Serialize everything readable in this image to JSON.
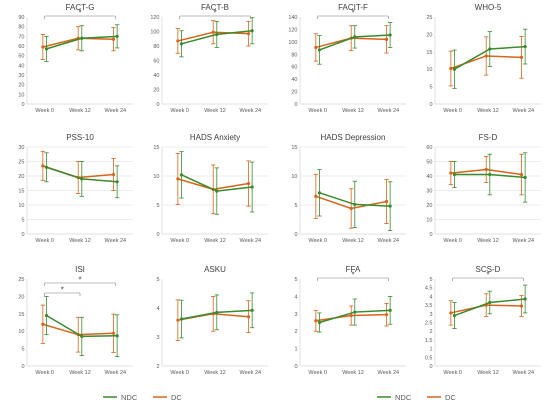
{
  "colors": {
    "ndc": "#3a8a2e",
    "dc": "#d9641a",
    "axis": "#d9d9d9",
    "grid": "#d9d9d9",
    "bracket": "#7f7f7f",
    "text": "#595959"
  },
  "legend": [
    {
      "label": "NDC",
      "color": "#3a8a2e"
    },
    {
      "label": "DC",
      "color": "#d9641a"
    }
  ],
  "chart_data": [
    {
      "type": "line",
      "title": "FACT-G",
      "categories": [
        "Week 0",
        "Week 12",
        "Week 24"
      ],
      "ylim": [
        0,
        90
      ],
      "yticks": [
        0,
        10,
        20,
        30,
        40,
        50,
        60,
        70,
        80,
        90
      ],
      "grid": false,
      "series": [
        {
          "name": "NDC",
          "values": [
            57,
            68,
            70
          ],
          "error": [
            13,
            13,
            12
          ]
        },
        {
          "name": "DC",
          "values": [
            59,
            68,
            67
          ],
          "error": [
            13,
            12,
            12
          ]
        }
      ],
      "significance": [
        {
          "from": "Week 0",
          "to": "Week 24",
          "label": "*"
        }
      ]
    },
    {
      "type": "line",
      "title": "FACT-B",
      "categories": [
        "Week 0",
        "Week 12",
        "Week 24"
      ],
      "ylim": [
        0,
        120
      ],
      "yticks": [
        0,
        20,
        40,
        60,
        80,
        100,
        120
      ],
      "grid": false,
      "series": [
        {
          "name": "NDC",
          "values": [
            83,
            96,
            101
          ],
          "error": [
            18,
            18,
            18
          ]
        },
        {
          "name": "DC",
          "values": [
            87,
            99,
            97
          ],
          "error": [
            17,
            16,
            17
          ]
        }
      ],
      "significance": [
        {
          "from": "Week 0",
          "to": "Week 24",
          "label": "*"
        }
      ]
    },
    {
      "type": "line",
      "title": "FACIT-F",
      "categories": [
        "Week 0",
        "Week 12",
        "Week 24"
      ],
      "ylim": [
        0,
        140
      ],
      "yticks": [
        0,
        20,
        40,
        60,
        80,
        100,
        120,
        140
      ],
      "grid": false,
      "series": [
        {
          "name": "NDC",
          "values": [
            87,
            108,
            111
          ],
          "error": [
            23,
            18,
            20
          ]
        },
        {
          "name": "DC",
          "values": [
            91,
            106,
            104
          ],
          "error": [
            22,
            20,
            22
          ]
        }
      ],
      "significance": [
        {
          "from": "Week 0",
          "to": "Week 24",
          "label": "*"
        }
      ]
    },
    {
      "type": "line",
      "title": "WHO-5",
      "categories": [
        "Week 0",
        "Week 12",
        "Week 24"
      ],
      "ylim": [
        0,
        25
      ],
      "yticks": [
        0,
        5,
        10,
        15,
        20,
        25
      ],
      "grid": false,
      "series": [
        {
          "name": "NDC",
          "values": [
            10,
            15.8,
            16.5
          ],
          "error": [
            5.5,
            5,
            5
          ]
        },
        {
          "name": "DC",
          "values": [
            10.2,
            13.8,
            13.4
          ],
          "error": [
            5,
            5.5,
            6
          ]
        }
      ],
      "significance": []
    },
    {
      "type": "line",
      "title": "PSS-10",
      "categories": [
        "Week 0",
        "Week 12",
        "Week 24"
      ],
      "ylim": [
        0,
        30
      ],
      "yticks": [
        0,
        5,
        10,
        15,
        20,
        25,
        30
      ],
      "grid": true,
      "series": [
        {
          "name": "NDC",
          "values": [
            23,
            19,
            18
          ],
          "error": [
            5,
            6,
            5.5
          ]
        },
        {
          "name": "DC",
          "values": [
            23.5,
            19.5,
            20.5
          ],
          "error": [
            5,
            5.5,
            5.5
          ]
        }
      ],
      "significance": []
    },
    {
      "type": "line",
      "title": "HADS Anxiety",
      "categories": [
        "Week 0",
        "Week 12",
        "Week 24"
      ],
      "ylim": [
        0,
        15
      ],
      "yticks": [
        0,
        5,
        10,
        15
      ],
      "grid": true,
      "series": [
        {
          "name": "NDC",
          "values": [
            10.2,
            7.4,
            8.1
          ],
          "error": [
            4,
            4,
            4.3
          ]
        },
        {
          "name": "DC",
          "values": [
            9.5,
            7.7,
            8.7
          ],
          "error": [
            4.4,
            4.2,
            3.9
          ]
        }
      ],
      "significance": []
    },
    {
      "type": "line",
      "title": "HADS Depression",
      "categories": [
        "Week 0",
        "Week 12",
        "Week 24"
      ],
      "ylim": [
        0,
        15
      ],
      "yticks": [
        0,
        5,
        10,
        15
      ],
      "grid": true,
      "series": [
        {
          "name": "NDC",
          "values": [
            7.1,
            5.1,
            4.8
          ],
          "error": [
            4,
            4,
            4.2
          ]
        },
        {
          "name": "DC",
          "values": [
            6.5,
            4.4,
            5.6
          ],
          "error": [
            3.8,
            3.4,
            3.8
          ]
        }
      ],
      "significance": []
    },
    {
      "type": "line",
      "title": "FS-D",
      "categories": [
        "Week 0",
        "Week 12",
        "Week 24"
      ],
      "ylim": [
        0,
        60
      ],
      "yticks": [
        0,
        10,
        20,
        30,
        40,
        50,
        60
      ],
      "grid": true,
      "series": [
        {
          "name": "NDC",
          "values": [
            41,
            41,
            39
          ],
          "error": [
            9,
            14,
            17
          ]
        },
        {
          "name": "DC",
          "values": [
            42,
            44.5,
            41
          ],
          "error": [
            8,
            9,
            14
          ]
        }
      ],
      "significance": []
    },
    {
      "type": "line",
      "title": "ISI",
      "categories": [
        "Week 0",
        "Week 12",
        "Week 24"
      ],
      "ylim": [
        0,
        25
      ],
      "yticks": [
        0,
        5,
        10,
        15,
        20,
        25
      ],
      "grid": false,
      "series": [
        {
          "name": "NDC",
          "values": [
            14.5,
            8.5,
            8.7
          ],
          "error": [
            5.5,
            5.5,
            6
          ]
        },
        {
          "name": "DC",
          "values": [
            12,
            9,
            9.4
          ],
          "error": [
            5.5,
            5,
            5.5
          ]
        }
      ],
      "significance": [
        {
          "from": "Week 0",
          "to": "Week 12",
          "label": "*"
        },
        {
          "from": "Week 0",
          "to": "Week 24",
          "label": "*"
        }
      ]
    },
    {
      "type": "line",
      "title": "ASKU",
      "categories": [
        "Week 0",
        "Week 12",
        "Week 24"
      ],
      "ylim": [
        2,
        5
      ],
      "yticks": [
        2,
        3,
        4,
        5
      ],
      "grid": false,
      "series": [
        {
          "name": "NDC",
          "values": [
            3.62,
            3.85,
            3.92
          ],
          "error": [
            0.65,
            0.6,
            0.6
          ]
        },
        {
          "name": "DC",
          "values": [
            3.58,
            3.8,
            3.7
          ],
          "error": [
            0.7,
            0.6,
            0.55
          ]
        }
      ],
      "significance": []
    },
    {
      "type": "line",
      "title": "FFA",
      "categories": [
        "Week 0",
        "Week 12",
        "Week 24"
      ],
      "ylim": [
        0,
        5
      ],
      "yticks": [
        0,
        1,
        2,
        3,
        4,
        5
      ],
      "grid": false,
      "series": [
        {
          "name": "NDC",
          "values": [
            2.5,
            3.1,
            3.2
          ],
          "error": [
            0.55,
            0.75,
            0.8
          ]
        },
        {
          "name": "DC",
          "values": [
            2.6,
            2.9,
            2.95
          ],
          "error": [
            0.6,
            0.55,
            0.65
          ]
        }
      ],
      "significance": [
        {
          "from": "Week 0",
          "to": "Week 24",
          "label": "*"
        }
      ]
    },
    {
      "type": "line",
      "title": "SCS-D",
      "categories": [
        "Week 0",
        "Week 12",
        "Week 24"
      ],
      "ylim": [
        0,
        5
      ],
      "yticks": [
        0,
        0.5,
        1,
        1.5,
        2,
        2.5,
        3,
        3.5,
        4,
        4.5,
        5
      ],
      "grid": false,
      "series": [
        {
          "name": "NDC",
          "values": [
            2.9,
            3.65,
            3.85
          ],
          "error": [
            0.75,
            0.65,
            0.8
          ]
        },
        {
          "name": "DC",
          "values": [
            3.05,
            3.5,
            3.45
          ],
          "error": [
            0.7,
            0.65,
            0.6
          ]
        }
      ],
      "significance": [
        {
          "from": "Week 0",
          "to": "Week 24",
          "label": "*"
        }
      ]
    }
  ]
}
